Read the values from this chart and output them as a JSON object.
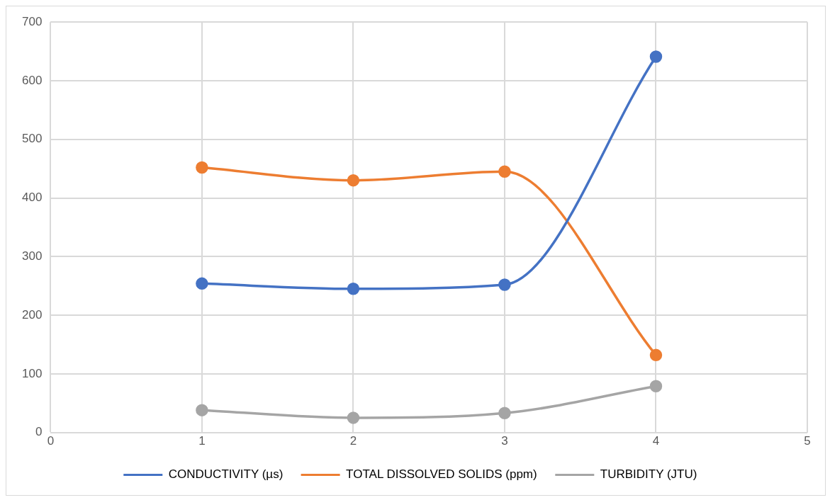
{
  "chart_data": {
    "type": "line",
    "x": [
      1,
      2,
      3,
      4
    ],
    "series": [
      {
        "name": "CONDUCTIVITY (µs)",
        "color": "#4472c4",
        "values": [
          254,
          245,
          252,
          641
        ]
      },
      {
        "name": "TOTAL DISSOLVED SOLIDS (ppm)",
        "color": "#ed7d31",
        "values": [
          452,
          430,
          445,
          132
        ]
      },
      {
        "name": "TURBIDITY (JTU)",
        "color": "#a5a5a5",
        "values": [
          38,
          25,
          33,
          79
        ]
      }
    ],
    "xlim": [
      0,
      5
    ],
    "xticks": [
      0,
      1,
      2,
      3,
      4,
      5
    ],
    "ylim": [
      0,
      700
    ],
    "yticks": [
      0,
      100,
      200,
      300,
      400,
      500,
      600,
      700
    ],
    "grid": true,
    "legend": "bottom",
    "marker": "circle",
    "line_style": "solid"
  }
}
